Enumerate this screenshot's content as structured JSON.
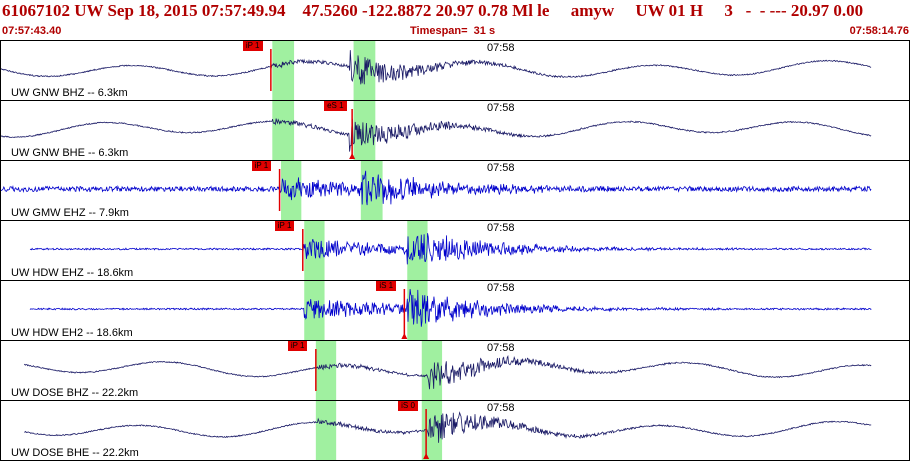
{
  "header": {
    "title": "61067102 UW Sep 18, 2015 07:57:49.94    47.5260 -122.8872 20.97 0.78 Ml le     amyw     UW 01 H     3   -  - --- 20.97 0.00",
    "start_time": "07:57:43.40",
    "timespan": "Timespan=  31 s",
    "end_time": "07:58:14.76"
  },
  "colors": {
    "header_text": "#b00000",
    "trace_broadband": "#1a1a66",
    "trace_short_period": "#0000cc",
    "pick": "#e00000",
    "window": "#a0f0a0"
  },
  "traces": [
    {
      "label": "UW GNW BHZ -- 6.3km",
      "time_mark": "07:58",
      "type": "broadband",
      "pick": {
        "label": "iP 1",
        "phase": "P",
        "arrival": 9.3
      },
      "windows": [
        {
          "start": 9.35,
          "end": 10.1
        },
        {
          "start": 12.15,
          "end": 12.9
        }
      ],
      "s_arrival": 12.0,
      "signal_end": 30.0,
      "noise_start": 0.0
    },
    {
      "label": "UW GNW BHE -- 6.3km",
      "time_mark": "07:58",
      "type": "broadband",
      "pick": {
        "label": "eS 1",
        "phase": "S",
        "arrival": 12.1
      },
      "windows": [
        {
          "start": 9.35,
          "end": 10.1
        },
        {
          "start": 12.15,
          "end": 12.9
        }
      ],
      "s_arrival": 12.0,
      "signal_end": 30.0,
      "noise_start": 0.0
    },
    {
      "label": "UW GMW EHZ -- 7.9km",
      "time_mark": "07:58",
      "type": "short",
      "pick": {
        "label": "iP 1",
        "phase": "P",
        "arrival": 9.6
      },
      "windows": [
        {
          "start": 9.65,
          "end": 10.35
        },
        {
          "start": 12.4,
          "end": 13.15
        }
      ],
      "s_arrival": 12.4,
      "signal_end": 30.0,
      "noise_start": 0.0
    },
    {
      "label": "UW HDW EHZ -- 18.6km",
      "time_mark": "07:58",
      "type": "short",
      "pick": {
        "label": "iP 1",
        "phase": "P",
        "arrival": 10.4
      },
      "windows": [
        {
          "start": 10.45,
          "end": 11.15
        },
        {
          "start": 14.0,
          "end": 14.7
        }
      ],
      "s_arrival": 14.0,
      "signal_end": 30.0,
      "noise_start": 1.0
    },
    {
      "label": "UW HDW EH2 -- 18.6km",
      "time_mark": "07:58",
      "type": "short",
      "pick": {
        "label": "iS 1",
        "phase": "S",
        "arrival": 13.9
      },
      "windows": [
        {
          "start": 10.45,
          "end": 11.15
        },
        {
          "start": 14.0,
          "end": 14.7
        }
      ],
      "s_arrival": 14.0,
      "signal_end": 30.0,
      "noise_start": 1.0
    },
    {
      "label": "UW DOSE BHZ -- 22.2km",
      "time_mark": "07:58",
      "type": "broadband",
      "pick": {
        "label": "iP 1",
        "phase": "P",
        "arrival": 10.85
      },
      "windows": [
        {
          "start": 10.85,
          "end": 11.55
        },
        {
          "start": 14.5,
          "end": 15.2
        }
      ],
      "s_arrival": 14.7,
      "signal_end": 30.0,
      "noise_start": 0.8
    },
    {
      "label": "UW DOSE BHE -- 22.2km",
      "time_mark": "07:58",
      "type": "broadband",
      "pick": {
        "label": "iS 0",
        "phase": "S",
        "arrival": 14.65
      },
      "windows": [
        {
          "start": 10.85,
          "end": 11.55
        },
        {
          "start": 14.5,
          "end": 15.2
        }
      ],
      "s_arrival": 14.7,
      "signal_end": 30.0,
      "noise_start": 0.8
    }
  ]
}
